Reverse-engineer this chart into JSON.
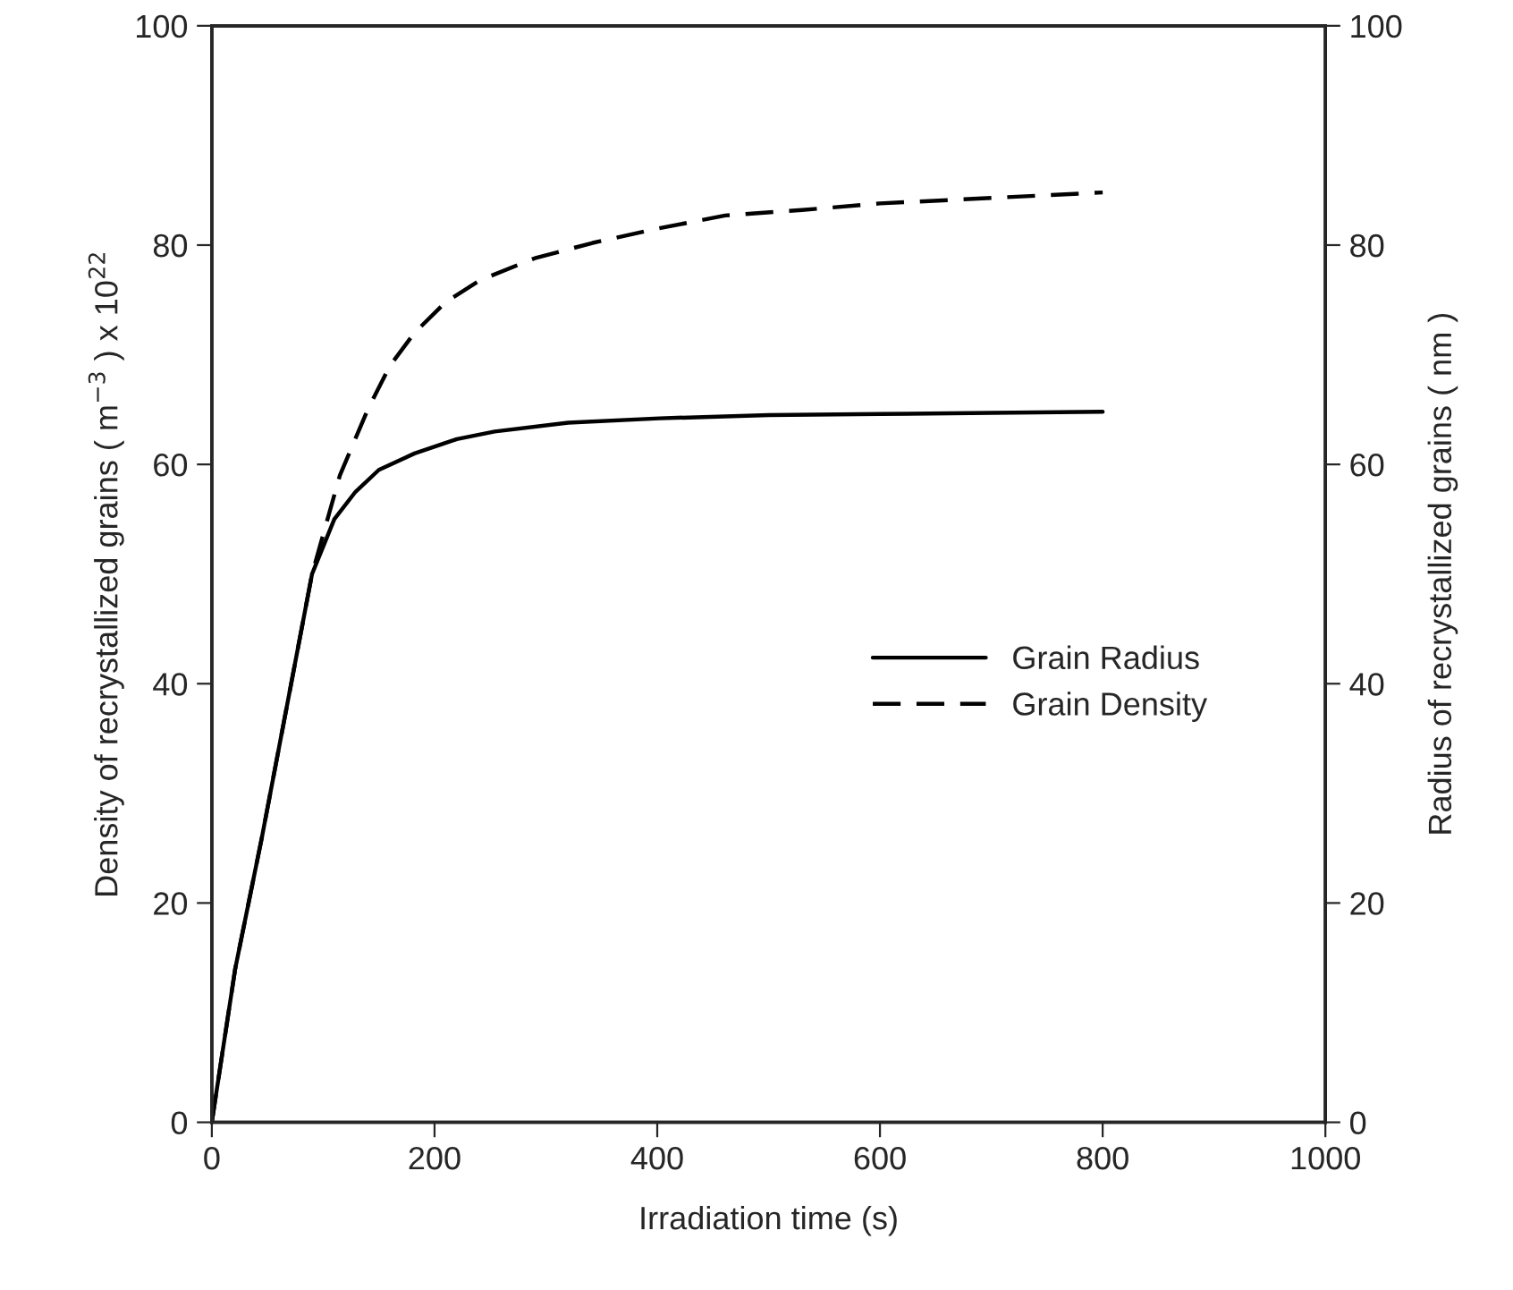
{
  "chart_data": {
    "type": "line",
    "xlabel": "Irradiation time (s)",
    "ylabel": "Density of recrystallized grains ( m$^{−3}$ ) x 10$^{22}$",
    "y2label": "Radius of recrystallized grains ( nm )",
    "xlim": [
      0,
      1000
    ],
    "xticks": [
      0,
      200,
      400,
      600,
      800,
      1000
    ],
    "ylim": [
      0,
      100
    ],
    "yticks": [
      0,
      20,
      40,
      60,
      80,
      100
    ],
    "y2lim": [
      0,
      100
    ],
    "y2ticks": [
      0,
      20,
      40,
      60,
      80,
      100
    ],
    "grid": false,
    "legend": "right",
    "series": [
      {
        "name": "Grain Radius",
        "color": "#000000",
        "line_style": "solid",
        "x": [
          0,
          21,
          45,
          90,
          110,
          129,
          150,
          182,
          220,
          254,
          320,
          402,
          500,
          600,
          700,
          800
        ],
        "values": [
          0,
          14,
          26,
          50,
          55,
          57.5,
          59.5,
          61,
          62.3,
          63,
          63.8,
          64.2,
          64.5,
          64.6,
          64.7,
          64.8
        ]
      },
      {
        "name": "Grain Density",
        "color": "#000000",
        "line_style": "dashed",
        "x": [
          0,
          21,
          45,
          90,
          115,
          140,
          160,
          182,
          210,
          241,
          290,
          342,
          400,
          461,
          530,
          600,
          700,
          800
        ],
        "values": [
          0,
          14,
          26,
          50,
          59,
          65,
          69,
          72,
          74.8,
          76.8,
          78.8,
          80.2,
          81.5,
          82.7,
          83.2,
          83.8,
          84.3,
          84.8
        ]
      }
    ]
  }
}
